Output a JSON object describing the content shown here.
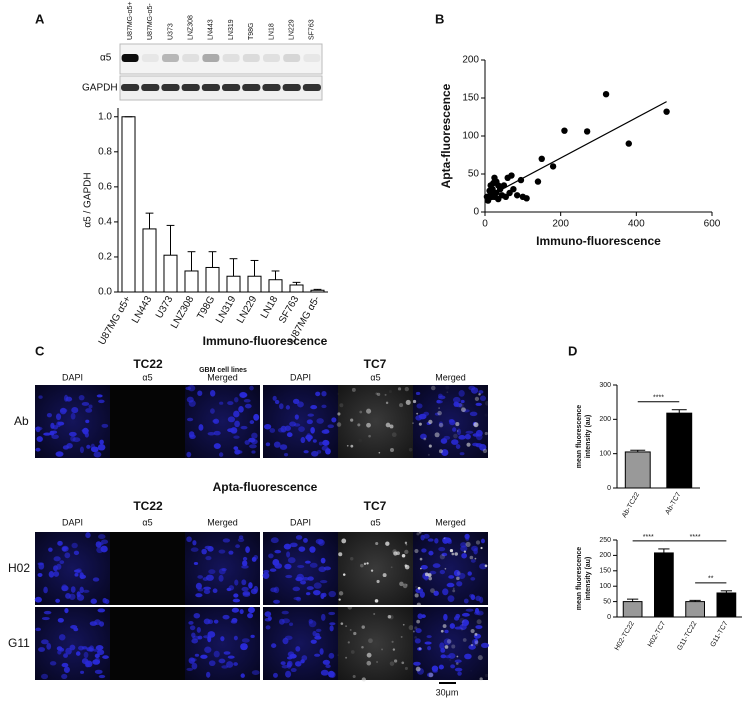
{
  "panel_labels": [
    "A",
    "B",
    "C",
    "D"
  ],
  "blot": {
    "lanes": [
      "U87MG-α5+",
      "U87MG-α5-",
      "U373",
      "LNZ308",
      "LN443",
      "LN319",
      "T98G",
      "LN18",
      "LN229",
      "SF763"
    ],
    "rows": [
      "α5",
      "GAPDH"
    ]
  },
  "micrographs": {
    "headings": [
      "Immuno-fluorescence",
      "Apta-fluorescence"
    ],
    "groups": [
      "TC22",
      "TC7"
    ],
    "channels": [
      "DAPI",
      "α5",
      "Merged"
    ],
    "rows": [
      "Ab",
      "H02",
      "G11"
    ],
    "scale_bar": "30μm"
  },
  "chart_data": [
    {
      "type": "bar",
      "ylabel": "α5 / GAPDH",
      "xlabel": "GBM cell lines",
      "categories": [
        "U87MG α5+",
        "LN443",
        "U373",
        "LNZ308",
        "T98G",
        "LN319",
        "LN229",
        "LN18",
        "SF763",
        "U87MG α5-"
      ],
      "values": [
        1.0,
        0.36,
        0.21,
        0.12,
        0.14,
        0.09,
        0.09,
        0.07,
        0.04,
        0.01
      ],
      "errors": [
        0,
        0.09,
        0.17,
        0.11,
        0.09,
        0.1,
        0.09,
        0.05,
        0.015,
        0.005
      ],
      "color": "#ffffff",
      "edgecolor": "#000000",
      "ylim": [
        0,
        1.05
      ],
      "yticks": [
        {
          "value": 0,
          "label": "0.0"
        },
        0.2,
        0.4,
        0.6,
        0.8,
        {
          "value": 1,
          "label": "1.0"
        }
      ]
    },
    {
      "type": "scatter",
      "xlabel": "Immuno-fluorescence",
      "ylabel": "Apta-fluorescence",
      "color": "#000000",
      "x": [
        480,
        320,
        270,
        210,
        380,
        180,
        150,
        140,
        100,
        95,
        70,
        60,
        75,
        55,
        45,
        40,
        35,
        30,
        25,
        22,
        20,
        18,
        15,
        12,
        10,
        8,
        30,
        50,
        65,
        85,
        110,
        15,
        25,
        35,
        5
      ],
      "y": [
        132,
        155,
        106,
        107,
        90,
        60,
        70,
        40,
        20,
        42,
        48,
        45,
        30,
        20,
        22,
        30,
        35,
        25,
        45,
        38,
        30,
        20,
        25,
        28,
        18,
        15,
        40,
        35,
        25,
        22,
        18,
        35,
        20,
        17,
        20
      ],
      "fit": {
        "slope": 0.265,
        "intercept": 18
      },
      "xlim": [
        0,
        600
      ],
      "ylim": [
        0,
        200
      ],
      "xticks": [
        0,
        200,
        400,
        600
      ],
      "yticks": [
        0,
        50,
        100,
        150,
        200
      ]
    },
    {
      "type": "bar",
      "ylabel_lines": [
        "mean fluorescence",
        "intensity (au)"
      ],
      "categories": [
        "Ab-TC22",
        "Ab-TC7"
      ],
      "values": [
        105,
        218
      ],
      "errors": [
        5,
        10
      ],
      "colors": [
        "#999999",
        "#000000"
      ],
      "edgecolor": "#000000",
      "ylim": [
        0,
        300
      ],
      "yticks": [
        0,
        100,
        200,
        300
      ],
      "significance": [
        {
          "between": [
            "Ab-TC22",
            "Ab-TC7"
          ],
          "label": "****"
        }
      ]
    },
    {
      "type": "bar",
      "ylabel_lines": [
        "mean fluorescence",
        "intensity (au)"
      ],
      "categories": [
        "H02-TC22",
        "H02-TC7",
        "G11-TC22",
        "G11-TC7"
      ],
      "values": [
        50,
        208,
        50,
        78
      ],
      "errors": [
        8,
        13,
        4,
        7
      ],
      "colors": [
        "#999999",
        "#000000",
        "#999999",
        "#000000"
      ],
      "edgecolor": "#000000",
      "ylim": [
        0,
        250
      ],
      "yticks": [
        0,
        50,
        100,
        150,
        200,
        250
      ],
      "significance": [
        {
          "between": [
            "H02-TC22",
            "H02-TC7"
          ],
          "label": "****"
        },
        {
          "between": [
            "H02-TC7",
            "G11-TC7"
          ],
          "label": "****"
        },
        {
          "between": [
            "G11-TC22",
            "G11-TC7"
          ],
          "label": "**"
        }
      ]
    }
  ]
}
